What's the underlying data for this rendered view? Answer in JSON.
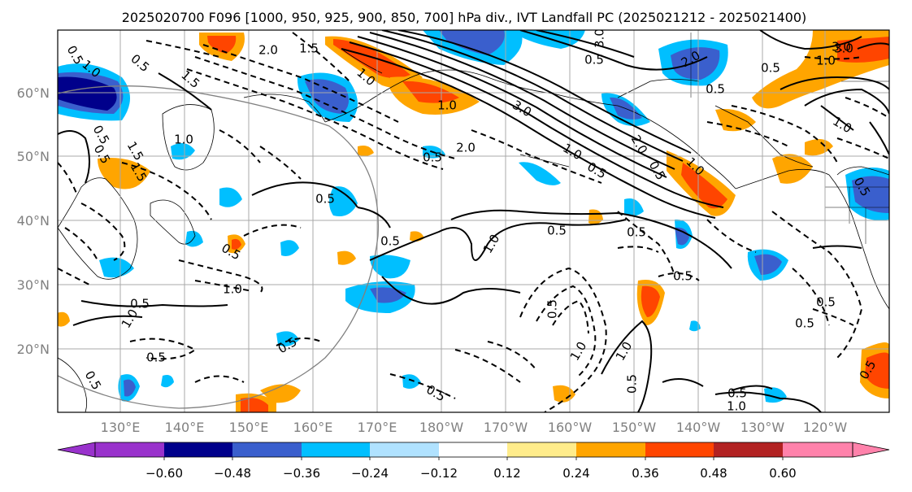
{
  "title": "2025020700 F096 [1000, 950, 925, 900, 850, 700] hPa div., IVT Landfall PC (2025021212 - 2025021400)",
  "lat_labels": [
    "60°N",
    "50°N",
    "40°N",
    "30°N",
    "20°N"
  ],
  "lon_labels": [
    "130°E",
    "140°E",
    "150°E",
    "160°E",
    "170°E",
    "180°W",
    "170°W",
    "160°W",
    "150°W",
    "140°W",
    "130°W",
    "120°W"
  ],
  "colorbar": {
    "colors": [
      "#9932cc",
      "#00008b",
      "#3a5fcd",
      "#00bfff",
      "#b0e2ff",
      "#ffffff",
      "#ffec8b",
      "#ffa500",
      "#ff4500",
      "#b22222",
      "#ff82ab"
    ],
    "tick_labels": [
      "−0.60",
      "−0.48",
      "−0.36",
      "−0.24",
      "−0.12",
      "0.12",
      "0.24",
      "0.36",
      "0.48",
      "0.60"
    ]
  },
  "contour_labels": [
    "0.5",
    "1.0",
    "1.5",
    "2.0",
    "3.0"
  ]
}
